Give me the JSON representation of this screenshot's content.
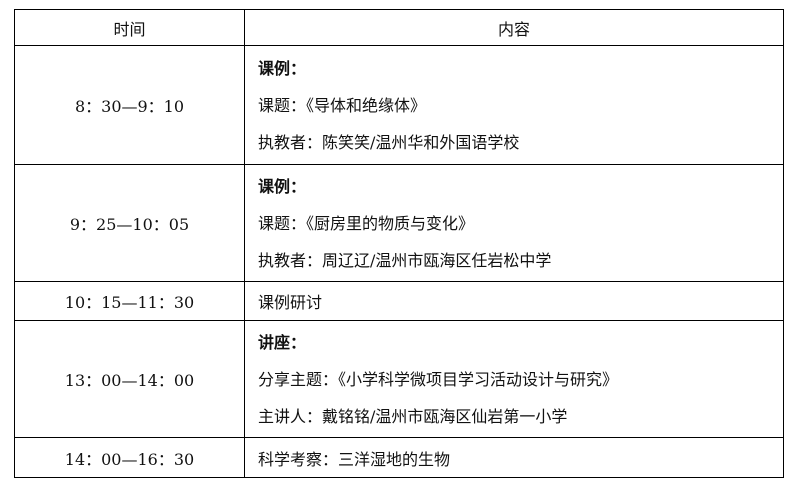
{
  "headers": {
    "time": "时间",
    "content": "内容"
  },
  "rows": [
    {
      "time": "8：30—9：10",
      "lines": [
        "课例：",
        "课题：《导体和绝缘体》",
        "执教者：陈笑笑/温州华和外国语学校"
      ]
    },
    {
      "time": "9：25—10：05",
      "lines": [
        "课例：",
        "课题：《厨房里的物质与变化》",
        "执教者：周辽辽/温州市瓯海区任岩松中学"
      ]
    },
    {
      "time": "10：15—11：30",
      "lines": [
        "课例研讨"
      ]
    },
    {
      "time": "13：00—14：00",
      "lines": [
        "讲座：",
        "分享主题：《小学科学微项目学习活动设计与研究》",
        "主讲人：戴铭铭/温州市瓯海区仙岩第一小学"
      ]
    },
    {
      "time": "14：00—16：30",
      "lines": [
        "科学考察：三洋湿地的生物"
      ]
    }
  ]
}
